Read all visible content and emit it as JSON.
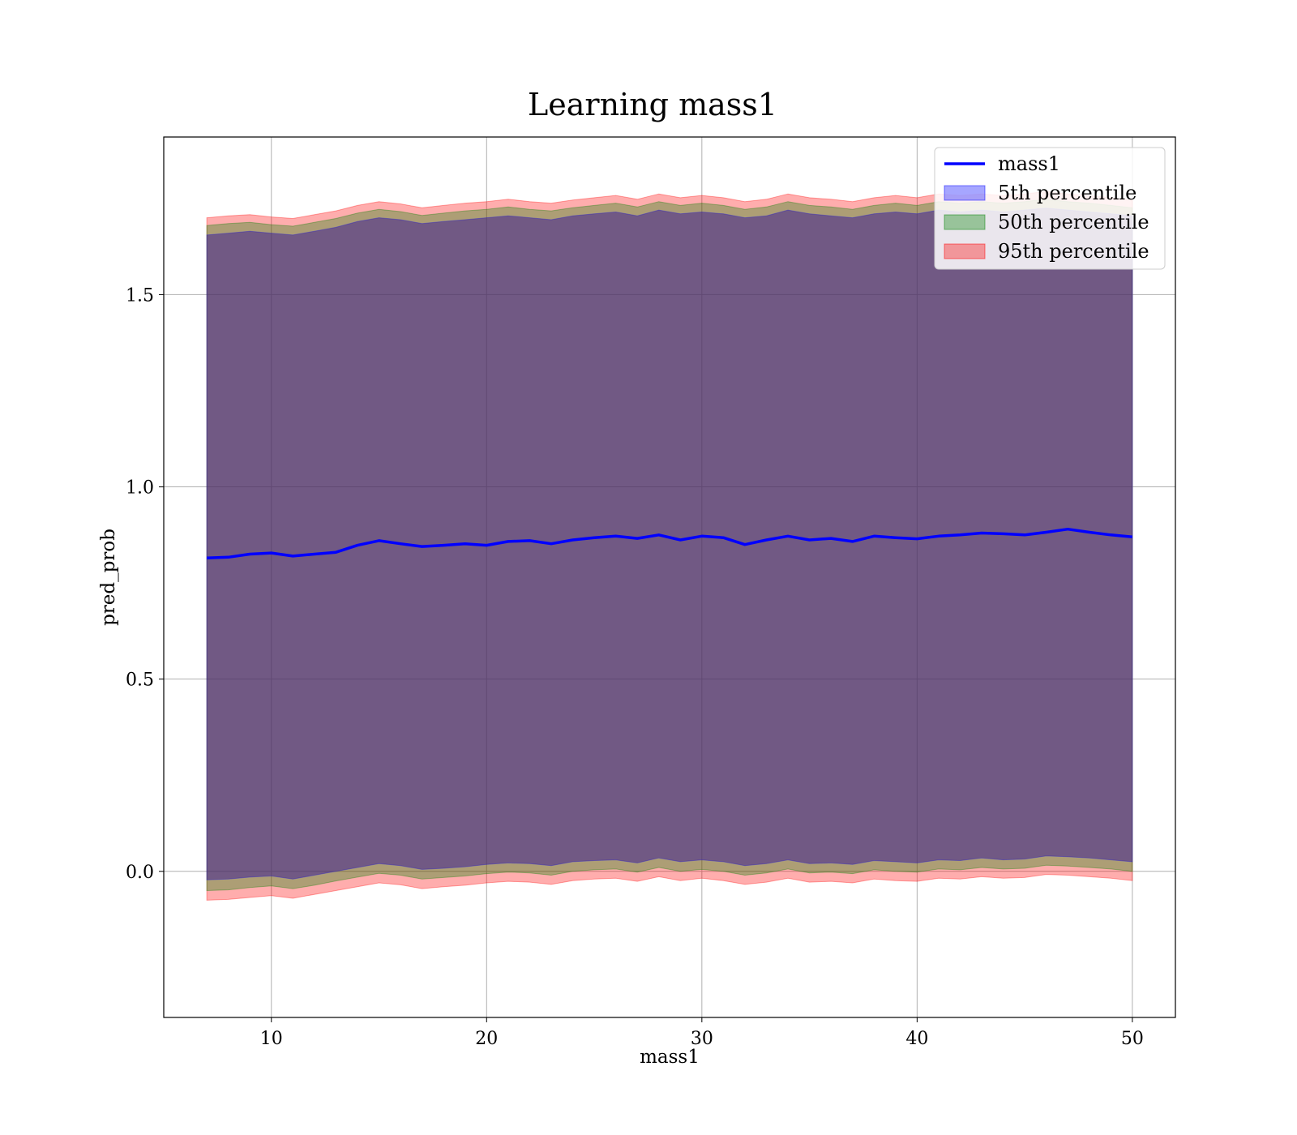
{
  "chart_data": {
    "type": "area",
    "title": "Learning mass1",
    "xlabel": "mass1",
    "ylabel": "pred_prob",
    "xlim": [
      5,
      52
    ],
    "ylim": [
      -0.38,
      1.91
    ],
    "xticks": [
      10,
      20,
      30,
      40,
      50
    ],
    "xtick_labels": [
      "10",
      "20",
      "30",
      "40",
      "50"
    ],
    "yticks": [
      0.0,
      0.5,
      1.0,
      1.5
    ],
    "ytick_labels": [
      "0.0",
      "0.5",
      "1.0",
      "1.5"
    ],
    "grid": true,
    "legend_position": "top-right",
    "x": [
      7,
      8,
      9,
      10,
      11,
      12,
      13,
      14,
      15,
      16,
      17,
      18,
      19,
      20,
      21,
      22,
      23,
      24,
      25,
      26,
      27,
      28,
      29,
      30,
      31,
      32,
      33,
      34,
      35,
      36,
      37,
      38,
      39,
      40,
      41,
      42,
      43,
      44,
      45,
      46,
      47,
      48,
      49,
      50
    ],
    "line": {
      "name": "mass1",
      "color": "#0000ff",
      "values": [
        0.815,
        0.817,
        0.825,
        0.828,
        0.82,
        0.825,
        0.83,
        0.848,
        0.86,
        0.852,
        0.845,
        0.848,
        0.852,
        0.848,
        0.858,
        0.86,
        0.852,
        0.862,
        0.868,
        0.872,
        0.866,
        0.875,
        0.862,
        0.872,
        0.868,
        0.85,
        0.862,
        0.872,
        0.862,
        0.866,
        0.858,
        0.872,
        0.868,
        0.865,
        0.872,
        0.875,
        0.88,
        0.878,
        0.875,
        0.882,
        0.89,
        0.882,
        0.875,
        0.87
      ]
    },
    "bands": [
      {
        "name": "5th percentile",
        "color": "#0000ff",
        "upper": [
          1.655,
          1.66,
          1.665,
          1.66,
          1.655,
          1.665,
          1.675,
          1.69,
          1.7,
          1.695,
          1.685,
          1.69,
          1.695,
          1.7,
          1.705,
          1.7,
          1.695,
          1.705,
          1.71,
          1.715,
          1.705,
          1.72,
          1.71,
          1.715,
          1.71,
          1.7,
          1.705,
          1.72,
          1.71,
          1.705,
          1.7,
          1.71,
          1.715,
          1.71,
          1.72,
          1.715,
          1.72,
          1.715,
          1.72,
          1.725,
          1.72,
          1.715,
          1.71,
          1.705
        ],
        "lower": [
          -0.022,
          -0.02,
          -0.015,
          -0.012,
          -0.02,
          -0.01,
          0.0,
          0.01,
          0.02,
          0.015,
          0.005,
          0.008,
          0.012,
          0.018,
          0.022,
          0.02,
          0.015,
          0.025,
          0.028,
          0.03,
          0.022,
          0.035,
          0.025,
          0.03,
          0.025,
          0.015,
          0.02,
          0.03,
          0.02,
          0.022,
          0.018,
          0.028,
          0.025,
          0.022,
          0.03,
          0.028,
          0.035,
          0.03,
          0.032,
          0.04,
          0.038,
          0.035,
          0.03,
          0.025
        ]
      },
      {
        "name": "50th percentile",
        "color": "#008000",
        "upper": [
          1.68,
          1.685,
          1.688,
          1.682,
          1.678,
          1.688,
          1.698,
          1.712,
          1.722,
          1.716,
          1.706,
          1.712,
          1.718,
          1.722,
          1.728,
          1.722,
          1.718,
          1.726,
          1.732,
          1.738,
          1.728,
          1.742,
          1.732,
          1.738,
          1.732,
          1.722,
          1.728,
          1.742,
          1.732,
          1.728,
          1.722,
          1.732,
          1.738,
          1.732,
          1.742,
          1.738,
          1.742,
          1.738,
          1.742,
          1.748,
          1.742,
          1.738,
          1.732,
          1.726
        ],
        "lower": [
          -0.05,
          -0.048,
          -0.042,
          -0.038,
          -0.045,
          -0.036,
          -0.025,
          -0.015,
          -0.005,
          -0.01,
          -0.02,
          -0.016,
          -0.012,
          -0.006,
          -0.002,
          -0.004,
          -0.01,
          0.0,
          0.004,
          0.006,
          -0.002,
          0.01,
          0.0,
          0.005,
          0.0,
          -0.01,
          -0.004,
          0.006,
          -0.004,
          -0.002,
          -0.006,
          0.004,
          0.0,
          -0.002,
          0.006,
          0.004,
          0.01,
          0.006,
          0.008,
          0.016,
          0.014,
          0.01,
          0.006,
          0.0
        ]
      },
      {
        "name": "95th percentile",
        "color": "#ff0000",
        "upper": [
          1.7,
          1.705,
          1.708,
          1.702,
          1.698,
          1.708,
          1.718,
          1.732,
          1.742,
          1.736,
          1.726,
          1.732,
          1.738,
          1.742,
          1.748,
          1.742,
          1.738,
          1.746,
          1.752,
          1.758,
          1.748,
          1.762,
          1.752,
          1.758,
          1.752,
          1.742,
          1.748,
          1.762,
          1.752,
          1.748,
          1.742,
          1.752,
          1.758,
          1.752,
          1.762,
          1.758,
          1.762,
          1.758,
          1.762,
          1.768,
          1.762,
          1.758,
          1.752,
          1.746
        ],
        "lower": [
          -0.075,
          -0.073,
          -0.068,
          -0.063,
          -0.07,
          -0.06,
          -0.05,
          -0.04,
          -0.03,
          -0.035,
          -0.045,
          -0.04,
          -0.036,
          -0.03,
          -0.026,
          -0.028,
          -0.034,
          -0.024,
          -0.02,
          -0.018,
          -0.026,
          -0.014,
          -0.024,
          -0.018,
          -0.024,
          -0.034,
          -0.028,
          -0.018,
          -0.028,
          -0.026,
          -0.03,
          -0.02,
          -0.024,
          -0.026,
          -0.018,
          -0.02,
          -0.014,
          -0.018,
          -0.016,
          -0.008,
          -0.01,
          -0.014,
          -0.018,
          -0.024
        ]
      }
    ],
    "legend": [
      {
        "label": "mass1",
        "kind": "line",
        "color": "#0000ff"
      },
      {
        "label": "5th percentile",
        "kind": "patch",
        "color": "#0000ff"
      },
      {
        "label": "50th percentile",
        "kind": "patch",
        "color": "#008000"
      },
      {
        "label": "95th percentile",
        "kind": "patch",
        "color": "#ff0000"
      }
    ]
  }
}
